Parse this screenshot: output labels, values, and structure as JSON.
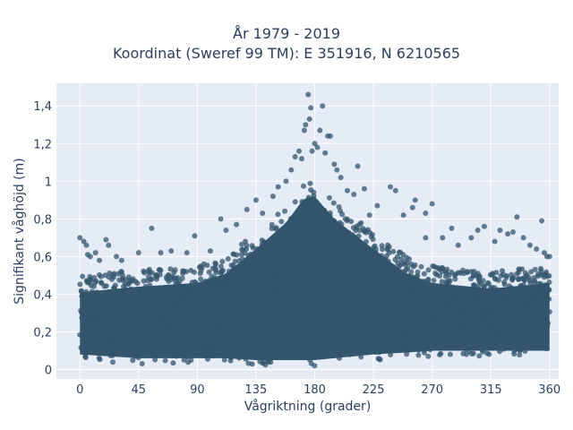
{
  "chart_data": {
    "type": "scatter",
    "title_lines": [
      "År 1979 - 2019",
      "Koordinat (Sweref 99 TM): E 351916, N 6210565"
    ],
    "xlabel": "Vågriktning (grader)",
    "ylabel": "Signifikant våghöjd (m)",
    "xlim": [
      -18,
      367
    ],
    "ylim": [
      -0.05,
      1.52
    ],
    "xticks": [
      0,
      45,
      90,
      135,
      180,
      225,
      270,
      315,
      360
    ],
    "xtick_labels": [
      "0",
      "45",
      "90",
      "135",
      "180",
      "225",
      "270",
      "315",
      "360"
    ],
    "yticks": [
      0,
      0.2,
      0.4,
      0.6,
      0.8,
      1.0,
      1.2,
      1.4
    ],
    "ytick_labels": [
      "0",
      "0,2",
      "0,4",
      "0,6",
      "0,8",
      "1",
      "1,2",
      "1,4"
    ],
    "grid": true,
    "marker_color": "#33566e",
    "plot_background": "#e5ecf6",
    "dense_band": [
      {
        "x": 0,
        "ymin": 0.05,
        "ymax": 0.45
      },
      {
        "x": 45,
        "ymin": 0.03,
        "ymax": 0.48
      },
      {
        "x": 90,
        "ymin": 0.03,
        "ymax": 0.5
      },
      {
        "x": 112,
        "ymin": 0.03,
        "ymax": 0.55
      },
      {
        "x": 135,
        "ymin": 0.02,
        "ymax": 0.68
      },
      {
        "x": 158,
        "ymin": 0.02,
        "ymax": 0.82
      },
      {
        "x": 172,
        "ymin": 0.02,
        "ymax": 0.95
      },
      {
        "x": 180,
        "ymin": 0.02,
        "ymax": 0.96
      },
      {
        "x": 195,
        "ymin": 0.03,
        "ymax": 0.84
      },
      {
        "x": 225,
        "ymin": 0.05,
        "ymax": 0.68
      },
      {
        "x": 250,
        "ymin": 0.06,
        "ymax": 0.55
      },
      {
        "x": 270,
        "ymin": 0.07,
        "ymax": 0.5
      },
      {
        "x": 315,
        "ymin": 0.07,
        "ymax": 0.47
      },
      {
        "x": 360,
        "ymin": 0.07,
        "ymax": 0.5
      }
    ],
    "outlier_points": [
      [
        0,
        0.7
      ],
      [
        3,
        0.68
      ],
      [
        5,
        0.66
      ],
      [
        6,
        0.61
      ],
      [
        8,
        0.6
      ],
      [
        12,
        0.62
      ],
      [
        20,
        0.69
      ],
      [
        22,
        0.66
      ],
      [
        28,
        0.6
      ],
      [
        32,
        0.58
      ],
      [
        45,
        0.62
      ],
      [
        55,
        0.75
      ],
      [
        62,
        0.62
      ],
      [
        70,
        0.63
      ],
      [
        82,
        0.62
      ],
      [
        88,
        0.71
      ],
      [
        100,
        0.63
      ],
      [
        108,
        0.8
      ],
      [
        112,
        0.74
      ],
      [
        120,
        0.77
      ],
      [
        128,
        0.85
      ],
      [
        135,
        0.9
      ],
      [
        140,
        0.83
      ],
      [
        148,
        0.92
      ],
      [
        152,
        0.97
      ],
      [
        158,
        1.0
      ],
      [
        162,
        1.06
      ],
      [
        165,
        1.13
      ],
      [
        168,
        1.16
      ],
      [
        170,
        1.12
      ],
      [
        172,
        1.27
      ],
      [
        173,
        1.3
      ],
      [
        175,
        1.46
      ],
      [
        176,
        1.33
      ],
      [
        177,
        1.39
      ],
      [
        178,
        1.16
      ],
      [
        180,
        1.2
      ],
      [
        182,
        1.18
      ],
      [
        184,
        1.27
      ],
      [
        186,
        1.4
      ],
      [
        188,
        1.15
      ],
      [
        190,
        1.24
      ],
      [
        192,
        1.24
      ],
      [
        195,
        1.09
      ],
      [
        197,
        1.06
      ],
      [
        200,
        1.02
      ],
      [
        205,
        0.95
      ],
      [
        210,
        0.93
      ],
      [
        213,
        1.08
      ],
      [
        218,
        0.96
      ],
      [
        222,
        0.82
      ],
      [
        228,
        0.87
      ],
      [
        238,
        0.97
      ],
      [
        242,
        0.95
      ],
      [
        248,
        0.82
      ],
      [
        255,
        0.86
      ],
      [
        257,
        0.9
      ],
      [
        265,
        0.83
      ],
      [
        270,
        0.88
      ],
      [
        278,
        0.7
      ],
      [
        285,
        0.75
      ],
      [
        290,
        0.66
      ],
      [
        300,
        0.7
      ],
      [
        305,
        0.74
      ],
      [
        310,
        0.76
      ],
      [
        318,
        0.68
      ],
      [
        322,
        0.74
      ],
      [
        328,
        0.72
      ],
      [
        332,
        0.73
      ],
      [
        335,
        0.81
      ],
      [
        340,
        0.7
      ],
      [
        345,
        0.66
      ],
      [
        350,
        0.64
      ],
      [
        354,
        0.79
      ],
      [
        356,
        0.62
      ],
      [
        358,
        0.6
      ],
      [
        360,
        0.6
      ],
      [
        265,
        0.7
      ],
      [
        15,
        0.58
      ],
      [
        95,
        0.56
      ]
    ]
  }
}
